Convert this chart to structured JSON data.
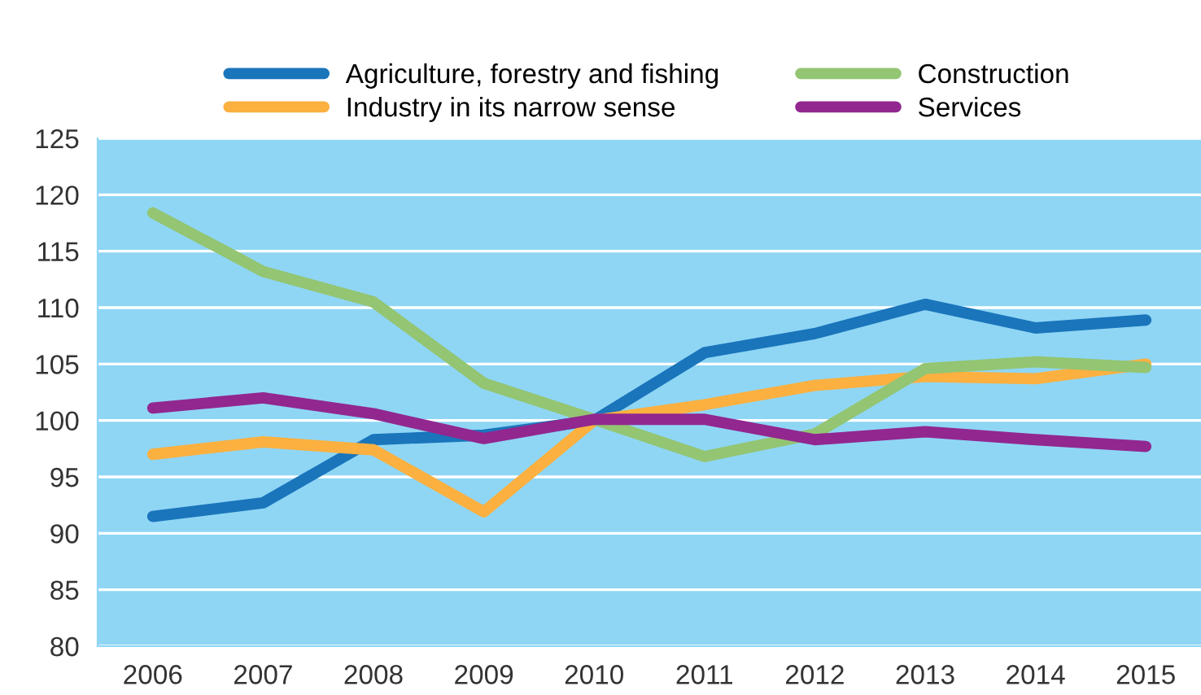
{
  "chart_data": {
    "type": "line",
    "categories": [
      "2006",
      "2007",
      "2008",
      "2009",
      "2010",
      "2011",
      "2012",
      "2013",
      "2014",
      "2015"
    ],
    "series": [
      {
        "name": "Agriculture, forestry and fishing",
        "color": "#1a75bb",
        "values": [
          91.5,
          92.7,
          98.3,
          98.7,
          100,
          106.0,
          107.7,
          110.3,
          108.2,
          108.9
        ]
      },
      {
        "name": "Industry in its narrow sense",
        "color": "#fbb040",
        "values": [
          97.0,
          98.1,
          97.4,
          91.9,
          100,
          101.4,
          103.1,
          103.9,
          103.7,
          105.0
        ]
      },
      {
        "name": "Construction",
        "color": "#93c572",
        "values": [
          118.4,
          113.2,
          110.5,
          103.3,
          100.1,
          96.8,
          98.8,
          104.6,
          105.2,
          104.7
        ]
      },
      {
        "name": "Services",
        "color": "#92278f",
        "values": [
          101.1,
          102.0,
          100.6,
          98.4,
          100.1,
          100.1,
          98.3,
          99.0,
          98.3,
          97.7
        ]
      }
    ],
    "ylim": [
      80,
      125
    ],
    "yticks": [
      80,
      85,
      90,
      95,
      100,
      105,
      110,
      115,
      120,
      125
    ],
    "grid": "y",
    "legend": "top",
    "marker": "none",
    "line_style": "solid"
  }
}
